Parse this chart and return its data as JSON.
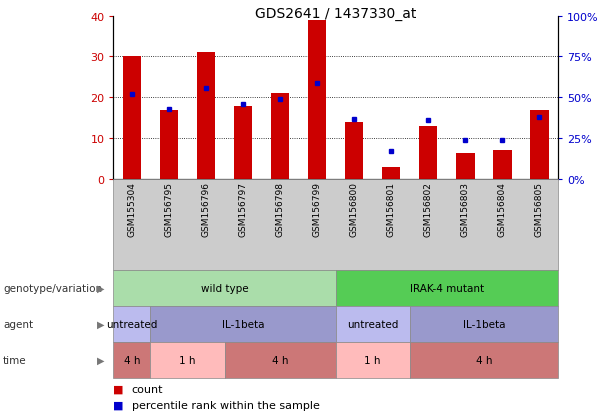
{
  "title": "GDS2641 / 1437330_at",
  "samples": [
    "GSM155304",
    "GSM156795",
    "GSM156796",
    "GSM156797",
    "GSM156798",
    "GSM156799",
    "GSM156800",
    "GSM156801",
    "GSM156802",
    "GSM156803",
    "GSM156804",
    "GSM156805"
  ],
  "counts": [
    30,
    17,
    31,
    18,
    21,
    39,
    14,
    3,
    13,
    6.5,
    7,
    17
  ],
  "percentile_ranks": [
    52,
    43,
    56,
    46,
    49,
    59,
    37,
    17,
    36,
    24,
    24,
    38
  ],
  "ylim_left": [
    0,
    40
  ],
  "ylim_right": [
    0,
    100
  ],
  "yticks_left": [
    0,
    10,
    20,
    30,
    40
  ],
  "yticks_right": [
    0,
    25,
    50,
    75,
    100
  ],
  "bar_color": "#cc0000",
  "dot_color": "#0000cc",
  "bg_color": "#ffffff",
  "plot_bg": "#ffffff",
  "left_tick_color": "#cc0000",
  "right_tick_color": "#0000cc",
  "xtick_bg": "#cccccc",
  "rows": {
    "genotype": {
      "label": "genotype/variation",
      "groups": [
        {
          "text": "wild type",
          "start": 0,
          "end": 5,
          "color": "#aaddaa",
          "border": "#888888"
        },
        {
          "text": "IRAK-4 mutant",
          "start": 6,
          "end": 11,
          "color": "#55cc55",
          "border": "#888888"
        }
      ]
    },
    "agent": {
      "label": "agent",
      "groups": [
        {
          "text": "untreated",
          "start": 0,
          "end": 0,
          "color": "#bbbbee",
          "border": "#888888"
        },
        {
          "text": "IL-1beta",
          "start": 1,
          "end": 5,
          "color": "#9999cc",
          "border": "#888888"
        },
        {
          "text": "untreated",
          "start": 6,
          "end": 7,
          "color": "#bbbbee",
          "border": "#888888"
        },
        {
          "text": "IL-1beta",
          "start": 8,
          "end": 11,
          "color": "#9999cc",
          "border": "#888888"
        }
      ]
    },
    "time": {
      "label": "time",
      "groups": [
        {
          "text": "4 h",
          "start": 0,
          "end": 0,
          "color": "#cc7777",
          "border": "#888888"
        },
        {
          "text": "1 h",
          "start": 1,
          "end": 2,
          "color": "#ffbbbb",
          "border": "#888888"
        },
        {
          "text": "4 h",
          "start": 3,
          "end": 5,
          "color": "#cc7777",
          "border": "#888888"
        },
        {
          "text": "1 h",
          "start": 6,
          "end": 7,
          "color": "#ffbbbb",
          "border": "#888888"
        },
        {
          "text": "4 h",
          "start": 8,
          "end": 11,
          "color": "#cc7777",
          "border": "#888888"
        }
      ]
    }
  },
  "row_keys": [
    "genotype",
    "agent",
    "time"
  ],
  "legend_count_label": "count",
  "legend_pct_label": "percentile rank within the sample",
  "row_label_color": "#333333",
  "arrow_color": "#777777",
  "xlim": [
    -0.5,
    11.5
  ]
}
